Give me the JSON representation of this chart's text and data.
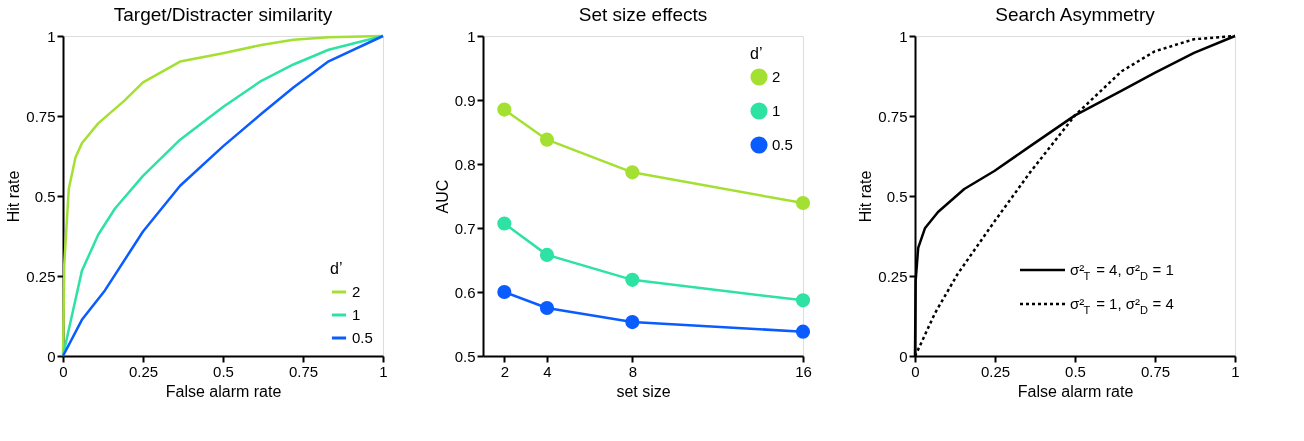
{
  "chart_data": [
    {
      "type": "line",
      "title": "Target/Distracter similarity",
      "xlabel": "False alarm rate",
      "ylabel": "Hit rate",
      "legend_title": "d’",
      "legend": "bottom right",
      "xlim": [
        0,
        1
      ],
      "ylim": [
        0,
        1
      ],
      "xticks": [
        0,
        0.25,
        0.5,
        0.75,
        1
      ],
      "yticks": [
        0,
        0.25,
        0.5,
        0.75,
        1
      ],
      "grid": false,
      "series": [
        {
          "name": "2",
          "color": "#a3e031",
          "x": [
            0,
            0.004,
            0.018,
            0.039,
            0.059,
            0.11,
            0.192,
            0.25,
            0.366,
            0.5,
            0.62,
            0.72,
            0.83,
            1
          ],
          "values": [
            0,
            0.287,
            0.522,
            0.62,
            0.665,
            0.727,
            0.798,
            0.855,
            0.92,
            0.946,
            0.972,
            0.988,
            0.996,
            1
          ]
        },
        {
          "name": "1",
          "color": "#2de2a3",
          "x": [
            0,
            0.018,
            0.059,
            0.11,
            0.162,
            0.25,
            0.366,
            0.5,
            0.62,
            0.72,
            0.83,
            1
          ],
          "values": [
            0,
            0.082,
            0.266,
            0.379,
            0.46,
            0.563,
            0.676,
            0.778,
            0.86,
            0.911,
            0.957,
            1
          ]
        },
        {
          "name": "0.5",
          "color": "#0a5cff",
          "x": [
            0,
            0.059,
            0.131,
            0.25,
            0.366,
            0.5,
            0.62,
            0.72,
            0.83,
            1
          ],
          "values": [
            0,
            0.113,
            0.205,
            0.389,
            0.532,
            0.655,
            0.757,
            0.839,
            0.921,
            1
          ]
        }
      ]
    },
    {
      "type": "line",
      "title": "Set size effects",
      "xlabel": "set size",
      "ylabel": "AUC",
      "legend_title": "d’",
      "legend": "top right",
      "marker": "circle",
      "xlim": [
        1,
        16
      ],
      "ylim": [
        0.5,
        1
      ],
      "xticks": [
        2,
        4,
        8,
        16
      ],
      "yticks": [
        0.5,
        0.6,
        0.7,
        0.8,
        0.9,
        1
      ],
      "grid": false,
      "x": [
        2,
        4,
        8,
        16
      ],
      "series": [
        {
          "name": "2",
          "color": "#a3e031",
          "values": [
            0.885,
            0.838,
            0.787,
            0.739
          ]
        },
        {
          "name": "1",
          "color": "#2de2a3",
          "values": [
            0.707,
            0.658,
            0.619,
            0.587
          ]
        },
        {
          "name": "0.5",
          "color": "#0a5cff",
          "values": [
            0.6,
            0.575,
            0.553,
            0.538
          ]
        }
      ]
    },
    {
      "type": "line",
      "title": "Search Asymmetry",
      "xlabel": "False alarm rate",
      "ylabel": "Hit rate",
      "legend": "bottom right",
      "xlim": [
        0,
        1
      ],
      "ylim": [
        0,
        1
      ],
      "xticks": [
        0,
        0.25,
        0.5,
        0.75,
        1
      ],
      "yticks": [
        0,
        0.25,
        0.5,
        0.75,
        1
      ],
      "grid": false,
      "series": [
        {
          "name": "σ²$_{T}$ = 4, σ²$_{D}$ = 1",
          "color": "#000000",
          "line_style": "solid",
          "x": [
            0,
            0.002,
            0.01,
            0.031,
            0.072,
            0.154,
            0.248,
            0.359,
            0.5,
            0.646,
            0.749,
            0.872,
            1
          ],
          "values": [
            0,
            0.235,
            0.338,
            0.399,
            0.45,
            0.522,
            0.578,
            0.655,
            0.752,
            0.829,
            0.885,
            0.947,
            1
          ]
        },
        {
          "name": "σ²$_{T}$ = 1, σ²$_{D}$ = 4",
          "color": "#000000",
          "line_style": "dotted",
          "x": [
            0,
            0.015,
            0.062,
            0.133,
            0.248,
            0.359,
            0.5,
            0.646,
            0.749,
            0.872,
            1
          ],
          "values": [
            0,
            0.031,
            0.133,
            0.256,
            0.42,
            0.573,
            0.752,
            0.89,
            0.952,
            0.99,
            1
          ]
        }
      ]
    }
  ]
}
